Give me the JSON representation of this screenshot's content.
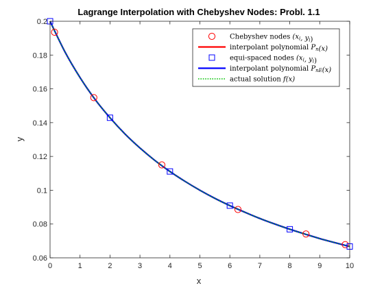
{
  "chart_data": {
    "type": "line",
    "title": "Lagrange Interpolation with Chebyshev Nodes: Probl. 1.1",
    "xlabel": "x",
    "ylabel": "y",
    "xlim": [
      0,
      10
    ],
    "ylim": [
      0.06,
      0.2
    ],
    "xticks": [
      "0",
      "1",
      "2",
      "3",
      "4",
      "5",
      "6",
      "7",
      "8",
      "9",
      "10"
    ],
    "yticks": [
      "0.06",
      "0.08",
      "0.1",
      "0.12",
      "0.14",
      "0.16",
      "0.18",
      "0.2"
    ],
    "grid": false,
    "legend_position": "top-right",
    "series": [
      {
        "name": "Chebyshev nodes (x_i, y_i)",
        "kind": "scatter",
        "marker": "circle",
        "color": "#ff0000",
        "x": [
          0.15,
          1.46,
          3.73,
          6.27,
          8.54,
          9.85
        ],
        "y": [
          0.1935,
          0.1548,
          0.115,
          0.0886,
          0.0741,
          0.0678
        ]
      },
      {
        "name": "interpolant polynomial P_n(x)",
        "kind": "line",
        "color": "#ff0000",
        "x": [
          0,
          0.5,
          1,
          1.5,
          2,
          2.5,
          3,
          3.5,
          4,
          4.5,
          5,
          5.5,
          6,
          6.5,
          7,
          7.5,
          8,
          8.5,
          9,
          9.5,
          10
        ],
        "y": [
          0.2,
          0.1818,
          0.1667,
          0.1538,
          0.1429,
          0.1333,
          0.125,
          0.1176,
          0.1111,
          0.1053,
          0.1,
          0.0952,
          0.0909,
          0.087,
          0.0833,
          0.08,
          0.0769,
          0.0741,
          0.0714,
          0.069,
          0.0667
        ]
      },
      {
        "name": "equi-spaced nodes (x_i, y_i)",
        "kind": "scatter",
        "marker": "square",
        "color": "#0000ff",
        "x": [
          0,
          2,
          4,
          6,
          8,
          10
        ],
        "y": [
          0.2,
          0.1429,
          0.1111,
          0.0909,
          0.0769,
          0.0667
        ]
      },
      {
        "name": "interpolant polynomial P_nE(x)",
        "kind": "line",
        "color": "#0000ff",
        "x": [
          0,
          0.5,
          1,
          1.5,
          2,
          2.5,
          3,
          3.5,
          4,
          4.5,
          5,
          5.5,
          6,
          6.5,
          7,
          7.5,
          8,
          8.5,
          9,
          9.5,
          10
        ],
        "y": [
          0.2,
          0.1818,
          0.1667,
          0.1538,
          0.1429,
          0.1333,
          0.125,
          0.1176,
          0.1111,
          0.1053,
          0.1,
          0.0952,
          0.0909,
          0.087,
          0.0833,
          0.08,
          0.0769,
          0.0741,
          0.0714,
          0.069,
          0.0667
        ]
      },
      {
        "name": "actual solution f(x)",
        "kind": "line",
        "dashed": true,
        "color": "#00c000",
        "x": [
          0,
          0.5,
          1,
          1.5,
          2,
          2.5,
          3,
          3.5,
          4,
          4.5,
          5,
          5.5,
          6,
          6.5,
          7,
          7.5,
          8,
          8.5,
          9,
          9.5,
          10
        ],
        "y": [
          0.2,
          0.1818,
          0.1667,
          0.1538,
          0.1429,
          0.1333,
          0.125,
          0.1176,
          0.1111,
          0.1053,
          0.1,
          0.0952,
          0.0909,
          0.087,
          0.0833,
          0.08,
          0.0769,
          0.0741,
          0.0714,
          0.069,
          0.0667
        ]
      }
    ],
    "legend": [
      {
        "prefix": "Chebyshev nodes ",
        "var": "(x",
        "sub": "i",
        "mid": ", y",
        "sub2": "i",
        "suffix": ")"
      },
      {
        "prefix": "interpolant polynomial ",
        "var": "P",
        "sub": "n",
        "mid": "(x)",
        "sub2": "",
        "suffix": ""
      },
      {
        "prefix": "equi-spaced nodes ",
        "var": "(x",
        "sub": "i",
        "mid": ", y",
        "sub2": "i",
        "suffix": ")"
      },
      {
        "prefix": "interpolant polynomial ",
        "var": "P",
        "sub": "nE",
        "mid": "(x)",
        "sub2": "",
        "suffix": ""
      },
      {
        "prefix": "actual solution ",
        "var": "f(x)",
        "sub": "",
        "mid": "",
        "sub2": "",
        "suffix": ""
      }
    ]
  }
}
